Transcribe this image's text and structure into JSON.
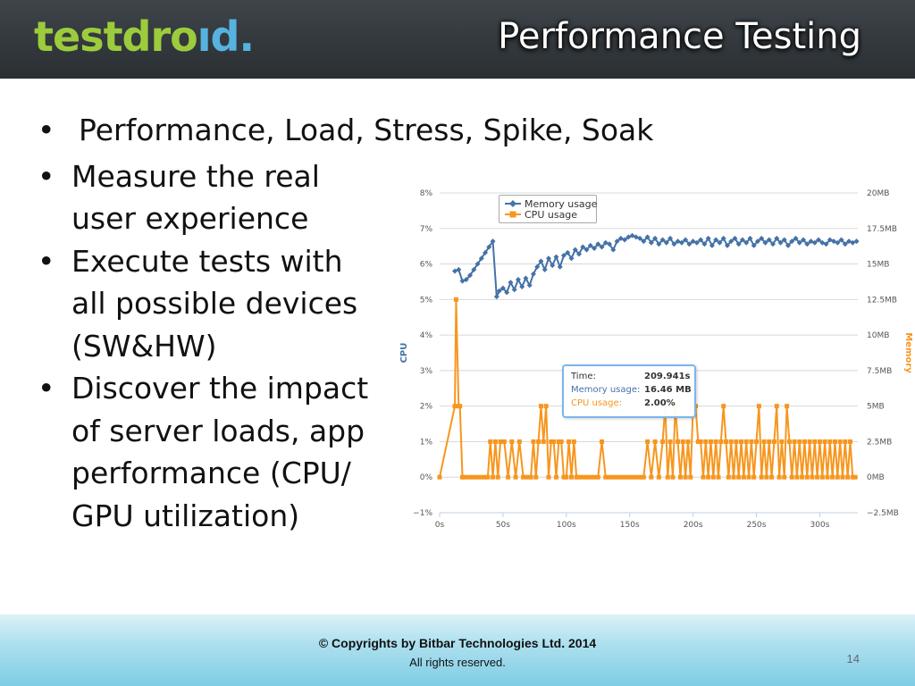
{
  "header": {
    "logo_part1": "testdro",
    "logo_part2": "ıd.",
    "title": "Performance Testing"
  },
  "bullets": [
    "Performance, Load, Stress, Spike, Soak",
    "Measure the real user experience",
    "Execute tests with all possible devices (SW&HW)",
    "Discover the impact of server loads, app performance (CPU/ GPU utilization)"
  ],
  "bullet_lines": [
    [
      "Performance, Load, Stress, Spike, Soak"
    ],
    [
      "Measure the real",
      "user experience"
    ],
    [
      "Execute tests with",
      "all possible devices",
      "(SW&HW)"
    ],
    [
      "Discover the impact",
      "of server loads, app",
      "performance (CPU/",
      "GPU utilization)"
    ]
  ],
  "bullet_symbol": "•",
  "tooltip": {
    "time_label": "Time:",
    "time_value": "209.941s",
    "memory_label": "Memory usage:",
    "memory_value": "16.46 MB",
    "cpu_label": "CPU usage:",
    "cpu_value": "2.00%"
  },
  "footer": {
    "copyright": "© Copyrights by Bitbar Technologies Ltd. 2014",
    "rights": "All rights reserved.",
    "page_number": "14"
  },
  "colors": {
    "memory": "#4572a7",
    "cpu": "#f7961e",
    "left_axis": "#4572a7",
    "right_axis": "#f7961e"
  },
  "chart_data": {
    "type": "line",
    "title": "",
    "xlabel": "",
    "ylabel": "CPU",
    "y2label": "Memory",
    "xlim": [
      0,
      330
    ],
    "ylim": [
      -1,
      8
    ],
    "y2lim": [
      -2.5,
      20
    ],
    "x_ticks": [
      "0s",
      "50s",
      "100s",
      "150s",
      "200s",
      "250s",
      "300s"
    ],
    "x_tick_values": [
      0,
      50,
      100,
      150,
      200,
      250,
      300
    ],
    "y_ticks": [
      "−1%",
      "0%",
      "1%",
      "2%",
      "3%",
      "4%",
      "5%",
      "6%",
      "7%",
      "8%"
    ],
    "y2_ticks": [
      "−2.5MB",
      "0MB",
      "2.5MB",
      "5MB",
      "7.5MB",
      "10MB",
      "12.5MB",
      "15MB",
      "17.5MB",
      "20MB"
    ],
    "legend_position": "top-left",
    "grid": true,
    "series": [
      {
        "name": "Memory usage",
        "axis": "right",
        "x": [
          12,
          15,
          18,
          21,
          24,
          27,
          30,
          33,
          36,
          39,
          42,
          45,
          47,
          50,
          53,
          56,
          59,
          62,
          65,
          68,
          71,
          74,
          77,
          80,
          83,
          86,
          89,
          92,
          95,
          98,
          101,
          104,
          107,
          110,
          113,
          116,
          119,
          122,
          125,
          128,
          131,
          134,
          137,
          140,
          143,
          146,
          149,
          152,
          155,
          158,
          161,
          164,
          167,
          170,
          173,
          176,
          179,
          182,
          185,
          188,
          191,
          194,
          197,
          200,
          203,
          206,
          209,
          212,
          215,
          218,
          221,
          224,
          227,
          230,
          233,
          236,
          239,
          242,
          245,
          248,
          251,
          254,
          257,
          260,
          263,
          266,
          269,
          272,
          275,
          278,
          281,
          284,
          287,
          290,
          293,
          296,
          299,
          302,
          305,
          308,
          311,
          314,
          317,
          320,
          323,
          326,
          329
        ],
        "y": [
          14.5,
          14.6,
          13.8,
          13.9,
          14.2,
          14.6,
          15.0,
          15.4,
          15.8,
          16.2,
          16.6,
          12.7,
          13.1,
          13.3,
          13.0,
          13.7,
          13.2,
          13.9,
          13.4,
          14.0,
          13.5,
          14.3,
          14.8,
          15.2,
          14.6,
          15.4,
          14.9,
          15.5,
          14.8,
          15.6,
          15.8,
          15.4,
          16.0,
          15.7,
          16.2,
          16.0,
          16.3,
          16.1,
          16.4,
          16.2,
          16.5,
          16.4,
          16.0,
          16.6,
          16.8,
          16.7,
          16.9,
          17.0,
          16.9,
          16.8,
          16.6,
          16.9,
          16.5,
          16.8,
          16.4,
          16.7,
          16.5,
          16.8,
          16.4,
          16.6,
          16.5,
          16.7,
          16.4,
          16.6,
          16.5,
          16.7,
          16.4,
          16.8,
          16.3,
          16.7,
          16.5,
          16.8,
          16.3,
          16.6,
          16.8,
          16.4,
          16.7,
          16.5,
          16.8,
          16.3,
          16.6,
          16.8,
          16.5,
          16.7,
          16.4,
          16.8,
          16.5,
          16.7,
          16.3,
          16.6,
          16.8,
          16.5,
          16.7,
          16.4,
          16.6,
          16.5,
          16.7,
          16.5,
          16.4,
          16.7,
          16.6,
          16.5,
          16.7,
          16.4,
          16.6,
          16.5,
          16.6
        ]
      },
      {
        "name": "CPU usage",
        "axis": "left",
        "x": [
          0,
          12,
          13,
          15,
          16,
          18,
          20,
          23,
          26,
          29,
          32,
          35,
          38,
          40,
          42,
          44,
          46,
          48,
          51,
          54,
          57,
          60,
          63,
          66,
          69,
          72,
          74,
          76,
          78,
          80,
          82,
          84,
          86,
          88,
          90,
          92,
          94,
          96,
          98,
          100,
          102,
          104,
          106,
          108,
          110,
          113,
          116,
          119,
          122,
          125,
          128,
          131,
          134,
          137,
          140,
          143,
          146,
          149,
          152,
          155,
          158,
          161,
          164,
          167,
          170,
          173,
          176,
          178,
          180,
          182,
          184,
          186,
          188,
          190,
          192,
          194,
          196,
          198,
          200,
          202,
          204,
          206,
          208,
          210,
          212,
          214,
          216,
          218,
          220,
          222,
          224,
          226,
          228,
          230,
          232,
          234,
          236,
          238,
          240,
          242,
          244,
          246,
          248,
          250,
          252,
          254,
          256,
          258,
          260,
          262,
          264,
          266,
          268,
          270,
          272,
          274,
          276,
          278,
          280,
          282,
          284,
          286,
          288,
          290,
          292,
          294,
          296,
          298,
          300,
          302,
          304,
          306,
          308,
          310,
          312,
          314,
          316,
          318,
          320,
          322,
          324,
          326,
          328
        ],
        "y": [
          0,
          2,
          5,
          2,
          2,
          0,
          0,
          0,
          0,
          0,
          0,
          0,
          0,
          1,
          0,
          1,
          0,
          1,
          1,
          0,
          1,
          0,
          1,
          0,
          0,
          0,
          1,
          0,
          1,
          2,
          1,
          2,
          0,
          1,
          1,
          0,
          1,
          1,
          0,
          0,
          1,
          0,
          1,
          0,
          0,
          0,
          0,
          0,
          0,
          0,
          1,
          0,
          0,
          0,
          0,
          0,
          0,
          0,
          0,
          0,
          0,
          0,
          1,
          0,
          1,
          0,
          1,
          2,
          0,
          1,
          0,
          2,
          1,
          0,
          1,
          0,
          1,
          0,
          2,
          2,
          1,
          1,
          0,
          1,
          0,
          1,
          0,
          1,
          0,
          1,
          2,
          1,
          0,
          1,
          0,
          1,
          0,
          1,
          0,
          1,
          0,
          1,
          0,
          1,
          2,
          0,
          1,
          0,
          1,
          0,
          1,
          2,
          0,
          1,
          0,
          2,
          1,
          0,
          1,
          0,
          1,
          0,
          1,
          0,
          1,
          0,
          1,
          0,
          1,
          0,
          1,
          0,
          1,
          0,
          1,
          0,
          1,
          0,
          1,
          0,
          1,
          0,
          0
        ]
      }
    ]
  }
}
